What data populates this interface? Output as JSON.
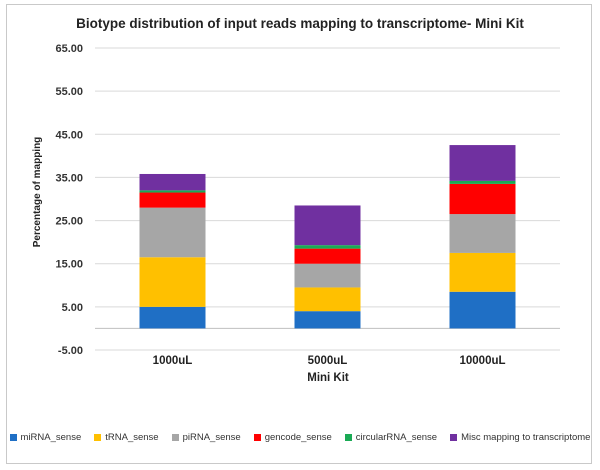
{
  "chart_data": {
    "type": "bar",
    "stacked": true,
    "title": "Biotype distribution of input reads mapping to transcriptome- Mini Kit",
    "xlabel": "Mini Kit",
    "ylabel": "Percentage of mapping",
    "categories": [
      "1000uL",
      "5000uL",
      "10000uL"
    ],
    "ylim": [
      -5,
      65
    ],
    "yticks": [
      "65.00",
      "55.00",
      "45.00",
      "35.00",
      "25.00",
      "15.00",
      "5.00",
      "-5.00"
    ],
    "ytick_values": [
      65,
      55,
      45,
      35,
      25,
      15,
      5,
      -5
    ],
    "grid": true,
    "legend_position": "bottom",
    "series": [
      {
        "name": "miRNA_sense",
        "color": "#1F6FC5",
        "values": [
          5.0,
          4.0,
          8.5
        ]
      },
      {
        "name": "tRNA_sense",
        "color": "#FFC000",
        "values": [
          11.5,
          5.5,
          9.0
        ]
      },
      {
        "name": "piRNA_sense",
        "color": "#A6A6A6",
        "values": [
          11.5,
          5.5,
          9.0
        ]
      },
      {
        "name": "gencode_sense",
        "color": "#FF0000",
        "values": [
          3.5,
          3.5,
          7.0
        ]
      },
      {
        "name": "circularRNA_sense",
        "color": "#1AAA55",
        "values": [
          0.5,
          0.8,
          0.7
        ]
      },
      {
        "name": "Misc mapping to transcriptome",
        "color": "#7030A0",
        "values": [
          3.8,
          9.2,
          8.3
        ]
      }
    ]
  }
}
